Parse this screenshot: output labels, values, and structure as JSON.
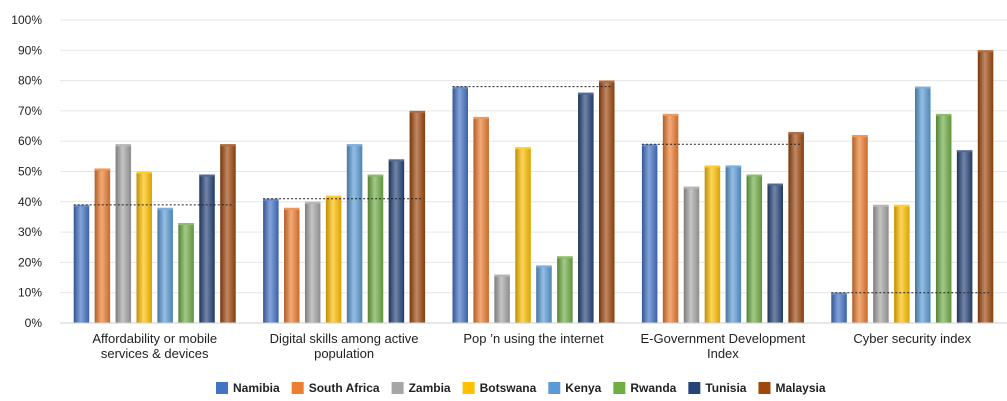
{
  "chart_data": {
    "type": "bar",
    "categories": [
      [
        "Affordability or mobile",
        "services & devices"
      ],
      [
        "Digital skills among active",
        "population"
      ],
      [
        "Pop ’n using the internet"
      ],
      [
        "E-Government Development",
        "Index"
      ],
      [
        "Cyber security index"
      ]
    ],
    "series": [
      {
        "name": "Namibia",
        "color": "#4472C4",
        "values": [
          39,
          41,
          78,
          59,
          10
        ]
      },
      {
        "name": "South Africa",
        "color": "#ED7D31",
        "values": [
          51,
          38,
          68,
          69,
          62
        ]
      },
      {
        "name": "Zambia",
        "color": "#A5A5A5",
        "values": [
          59,
          40,
          16,
          45,
          39
        ]
      },
      {
        "name": "Botswana",
        "color": "#FFC000",
        "values": [
          50,
          42,
          58,
          52,
          39
        ]
      },
      {
        "name": "Kenya",
        "color": "#5B9BD5",
        "values": [
          38,
          59,
          19,
          52,
          78
        ]
      },
      {
        "name": "Rwanda",
        "color": "#70AD47",
        "values": [
          33,
          49,
          22,
          49,
          69
        ]
      },
      {
        "name": "Tunisia",
        "color": "#264478",
        "values": [
          49,
          54,
          76,
          46,
          57
        ]
      },
      {
        "name": "Malaysia",
        "color": "#9E480E",
        "values": [
          59,
          70,
          80,
          63,
          90
        ]
      }
    ],
    "reference_series": "Namibia",
    "reference_style": "dotted",
    "y_ticks": [
      "0%",
      "10%",
      "20%",
      "30%",
      "40%",
      "50%",
      "60%",
      "70%",
      "80%",
      "90%",
      "100%"
    ],
    "ylim": [
      0,
      100
    ],
    "grid": true,
    "legend_position": "bottom",
    "title": "",
    "xlabel": "",
    "ylabel": ""
  }
}
